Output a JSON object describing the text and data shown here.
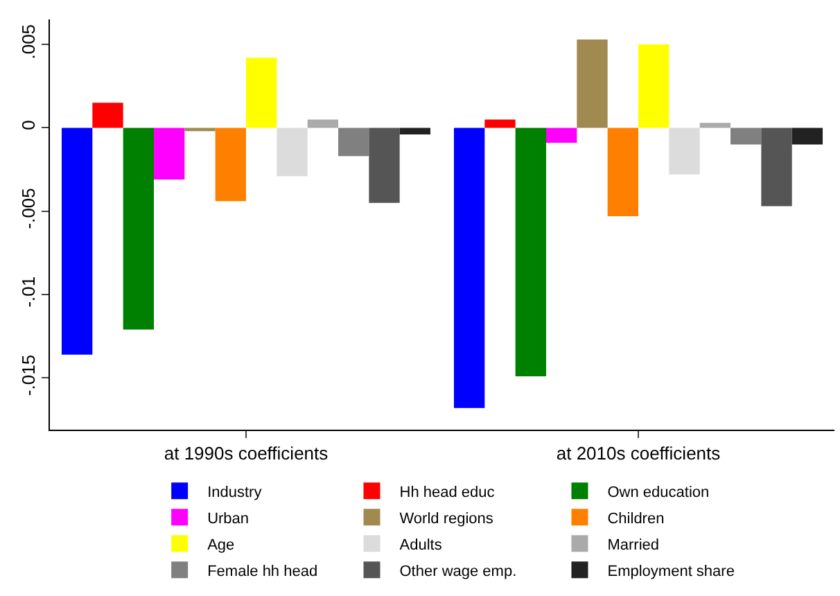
{
  "chart_data": {
    "type": "bar",
    "categories": [
      "at 1990s coefficients",
      "at 2010s coefficients"
    ],
    "series": [
      {
        "name": "Industry",
        "color": "#0000ff",
        "values": [
          -0.0136,
          -0.0168
        ]
      },
      {
        "name": "Hh head educ",
        "color": "#ff0000",
        "values": [
          0.0015,
          0.0005
        ]
      },
      {
        "name": "Own education",
        "color": "#008000",
        "values": [
          -0.0121,
          -0.0149
        ]
      },
      {
        "name": "Urban",
        "color": "#ff00ff",
        "values": [
          -0.0031,
          -0.0009
        ]
      },
      {
        "name": "World regions",
        "color": "#a08a50",
        "values": [
          -0.0002,
          0.0053
        ]
      },
      {
        "name": "Children",
        "color": "#ff8000",
        "values": [
          -0.0044,
          -0.0053
        ]
      },
      {
        "name": "Age",
        "color": "#ffff00",
        "values": [
          0.0042,
          0.005
        ]
      },
      {
        "name": "Adults",
        "color": "#dcdcdc",
        "values": [
          -0.0029,
          -0.0028
        ]
      },
      {
        "name": "Married",
        "color": "#aaaaaa",
        "values": [
          0.0005,
          0.0003
        ]
      },
      {
        "name": "Female hh head",
        "color": "#808080",
        "values": [
          -0.0017,
          -0.001
        ]
      },
      {
        "name": "Other wage emp.",
        "color": "#555555",
        "values": [
          -0.0045,
          -0.0047
        ]
      },
      {
        "name": "Employment share",
        "color": "#222222",
        "values": [
          -0.0004,
          -0.001
        ]
      }
    ],
    "ylim": [
      -0.0181,
      0.0065
    ],
    "yticks": [
      {
        "value": 0.005,
        "label": ".005"
      },
      0,
      {
        "value": -0.005,
        "label": "-.005"
      },
      {
        "value": -0.01,
        "label": "-.01"
      },
      {
        "value": -0.015,
        "label": "-.015"
      }
    ],
    "grid": false,
    "legend": "bottom"
  }
}
